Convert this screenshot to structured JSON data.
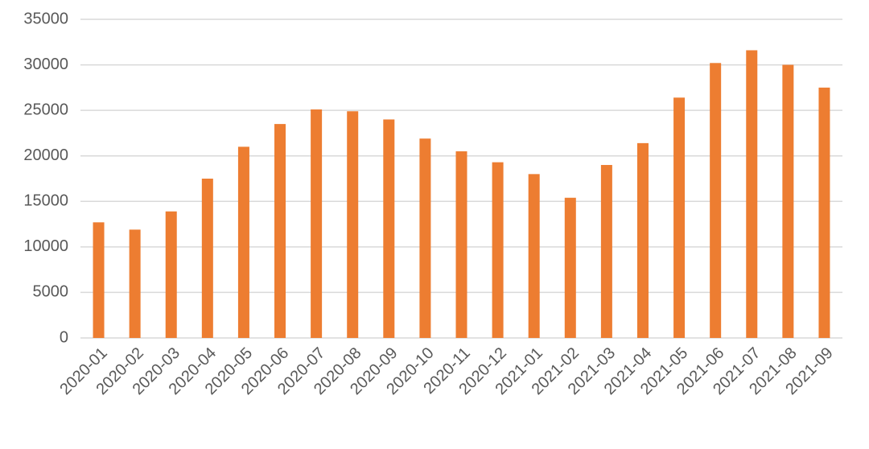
{
  "chart_data": {
    "type": "bar",
    "categories": [
      "2020-01",
      "2020-02",
      "2020-03",
      "2020-04",
      "2020-05",
      "2020-06",
      "2020-07",
      "2020-08",
      "2020-09",
      "2020-10",
      "2020-11",
      "2020-12",
      "2021-01",
      "2021-02",
      "2021-03",
      "2021-04",
      "2021-05",
      "2021-06",
      "2021-07",
      "2021-08",
      "2021-09"
    ],
    "values": [
      12700,
      11900,
      13900,
      17500,
      21000,
      23500,
      25100,
      24900,
      24000,
      21900,
      20500,
      19300,
      18000,
      15400,
      19000,
      21400,
      26400,
      30200,
      31600,
      30000,
      27500
    ],
    "color": "#ed7d31",
    "ylim": [
      0,
      35000
    ],
    "yticks": [
      0,
      5000,
      10000,
      15000,
      20000,
      25000,
      30000,
      35000
    ],
    "grid": true
  }
}
